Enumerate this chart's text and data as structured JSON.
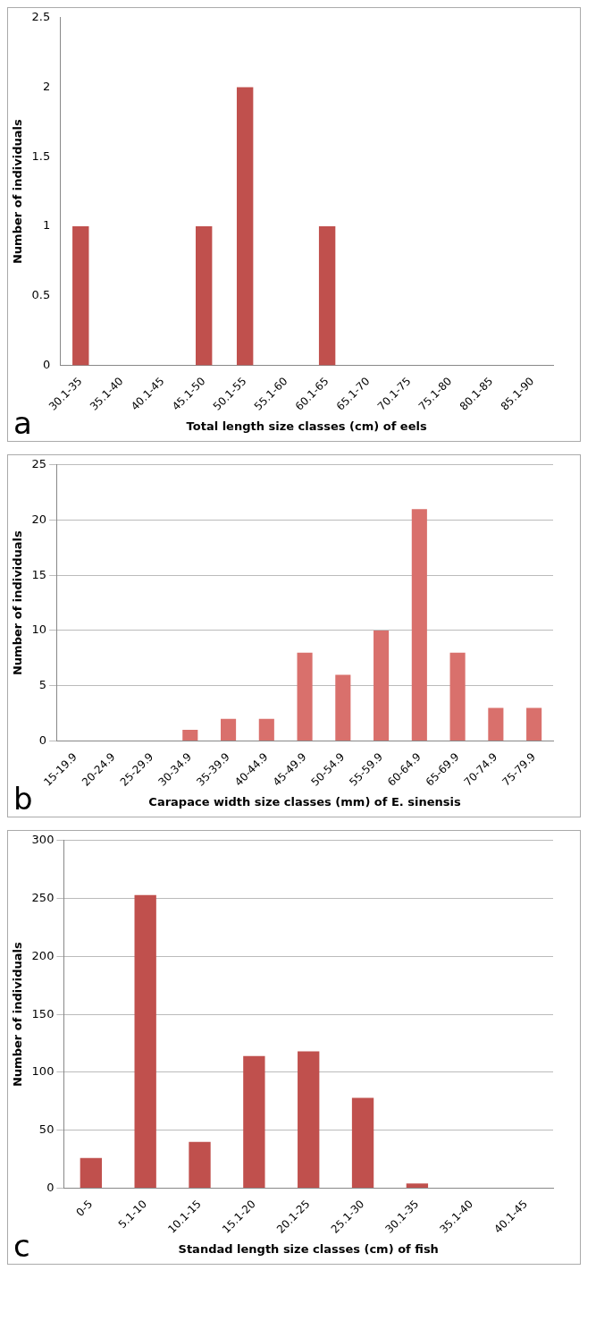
{
  "chart_data": [
    {
      "type": "bar",
      "categories": [
        "30.1-35",
        "35.1-40",
        "40.1-45",
        "45.1-50",
        "50.1-55",
        "55.1-60",
        "60.1-65",
        "65.1-70",
        "70.1-75",
        "75.1-80",
        "80.1-85",
        "85.1-90"
      ],
      "values": [
        1,
        0,
        0,
        1,
        2,
        0,
        1,
        0,
        0,
        0,
        0,
        0
      ],
      "color": "#c0504d",
      "ylim": [
        0,
        2.5
      ],
      "yticks": [
        0,
        0.5,
        1,
        1.5,
        2,
        2.5
      ],
      "ylabel": "Number of individuals",
      "xlabel": "Total length size classes (cm) of eels",
      "annotations": [
        "a"
      ]
    },
    {
      "type": "bar",
      "categories": [
        "15-19.9",
        "20-24.9",
        "25-29.9",
        "30-34.9",
        "35-39.9",
        "40-44.9",
        "45-49.9",
        "50-54.9",
        "55-59.9",
        "60-64.9",
        "65-69.9",
        "70-74.9",
        "75-79.9"
      ],
      "values": [
        0,
        0,
        0,
        1,
        2,
        2,
        8,
        6,
        10,
        21,
        8,
        3,
        3
      ],
      "color": "#d9706c",
      "ylim": [
        0,
        25
      ],
      "yticks": [
        0,
        5,
        10,
        15,
        20,
        25
      ],
      "grid": "y",
      "ylabel": "Number of individuals",
      "xlabel": "Carapace width size classes (mm) of E. sinensis",
      "annotations": [
        "b"
      ]
    },
    {
      "type": "bar",
      "categories": [
        "0-5",
        "5.1-10",
        "10.1-15",
        "15.1-20",
        "20.1-25",
        "25.1-30",
        "30.1-35",
        "35.1-40",
        "40.1-45"
      ],
      "values": [
        26,
        253,
        40,
        114,
        118,
        78,
        4,
        0,
        0
      ],
      "color": "#c0504d",
      "ylim": [
        0,
        300
      ],
      "yticks": [
        0,
        50,
        100,
        150,
        200,
        250,
        300
      ],
      "grid": "y",
      "ylabel": "Number of individuals",
      "xlabel": "Standad length size classes (cm) of fish",
      "annotations": [
        "c"
      ]
    }
  ]
}
